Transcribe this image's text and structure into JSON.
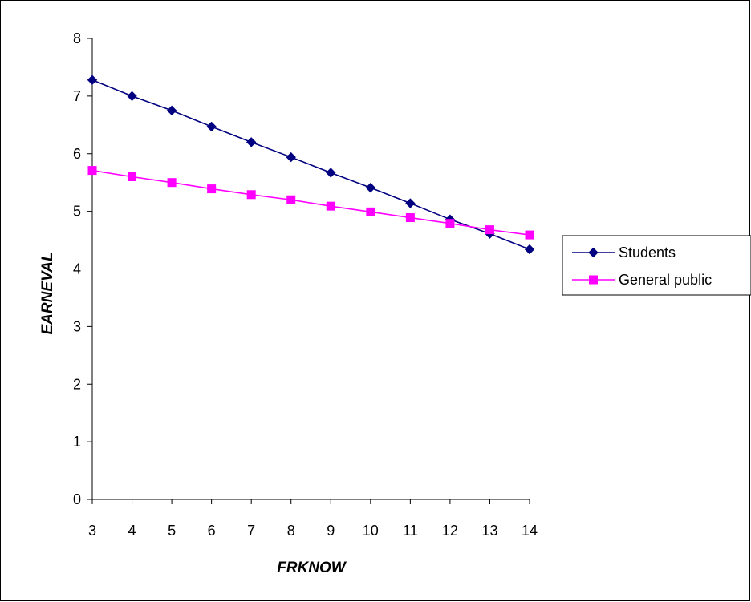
{
  "chart_data": {
    "type": "line",
    "title": "",
    "xlabel": "FRKNOW",
    "ylabel": "EARNEVAL",
    "x": [
      3,
      4,
      5,
      6,
      7,
      8,
      9,
      10,
      11,
      12,
      13,
      14
    ],
    "xlim": [
      3,
      14
    ],
    "ylim": [
      0,
      8
    ],
    "yticks": [
      0,
      1,
      2,
      3,
      4,
      5,
      6,
      7,
      8
    ],
    "grid": false,
    "legend_position": "right",
    "series": [
      {
        "name": "Students",
        "marker": "diamond",
        "color": "#000080",
        "values": [
          7.28,
          7.0,
          6.75,
          6.47,
          6.2,
          5.94,
          5.67,
          5.41,
          5.14,
          4.86,
          4.61,
          4.34
        ]
      },
      {
        "name": "General public",
        "marker": "square",
        "color": "#ff00ff",
        "values": [
          5.71,
          5.6,
          5.5,
          5.39,
          5.29,
          5.2,
          5.09,
          4.99,
          4.89,
          4.79,
          4.68,
          4.59
        ]
      }
    ]
  }
}
